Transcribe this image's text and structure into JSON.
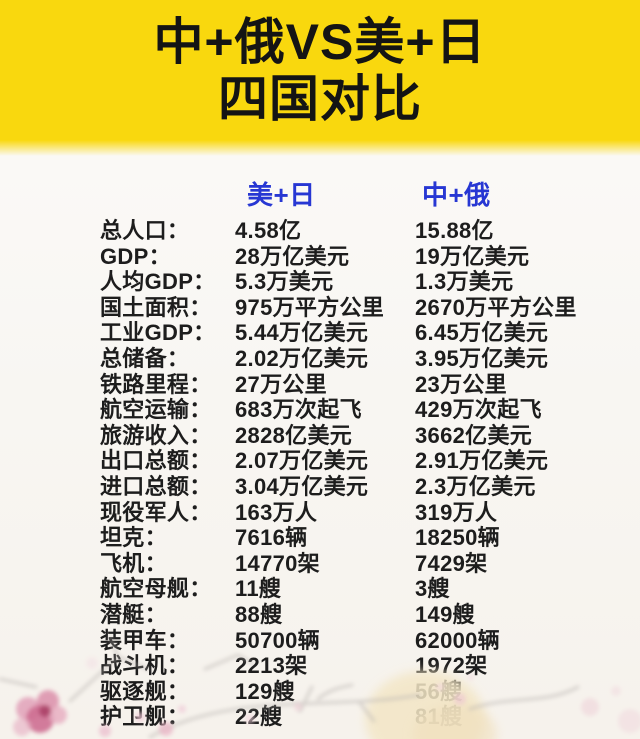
{
  "header": {
    "title_line1": "中+俄VS美+日",
    "title_line2": "四国对比",
    "bg_color": "#F9D80E",
    "text_color": "#141414"
  },
  "table": {
    "column_headers": {
      "us_jp": "美+日",
      "cn_ru": "中+俄",
      "color": "#2737D3"
    },
    "rows": [
      {
        "label": "总人口：",
        "us_jp": "4.58亿",
        "cn_ru": "15.88亿"
      },
      {
        "label": "GDP：",
        "us_jp": "28万亿美元",
        "cn_ru": "19万亿美元"
      },
      {
        "label": "人均GDP：",
        "us_jp": "5.3万美元",
        "cn_ru": "1.3万美元"
      },
      {
        "label": "国土面积：",
        "us_jp": "975万平方公里",
        "cn_ru": "2670万平方公里"
      },
      {
        "label": "工业GDP：",
        "us_jp": "5.44万亿美元",
        "cn_ru": "6.45万亿美元"
      },
      {
        "label": "总储备：",
        "us_jp": "2.02万亿美元",
        "cn_ru": "3.95万亿美元"
      },
      {
        "label": "铁路里程：",
        "us_jp": "27万公里",
        "cn_ru": "23万公里"
      },
      {
        "label": "航空运输：",
        "us_jp": "683万次起飞",
        "cn_ru": "429万次起飞"
      },
      {
        "label": "旅游收入：",
        "us_jp": "2828亿美元",
        "cn_ru": "3662亿美元"
      },
      {
        "label": "出口总额：",
        "us_jp": "2.07万亿美元",
        "cn_ru": "2.91万亿美元"
      },
      {
        "label": "进口总额：",
        "us_jp": "3.04万亿美元",
        "cn_ru": "2.3万亿美元"
      },
      {
        "label": "现役军人：",
        "us_jp": "163万人",
        "cn_ru": "319万人"
      },
      {
        "label": "坦克：",
        "us_jp": "7616辆",
        "cn_ru": "18250辆"
      },
      {
        "label": "飞机：",
        "us_jp": "14770架",
        "cn_ru": "7429架"
      },
      {
        "label": "航空母舰：",
        "us_jp": "11艘",
        "cn_ru": "3艘"
      },
      {
        "label": "潜艇：",
        "us_jp": "88艘",
        "cn_ru": "149艘"
      },
      {
        "label": "装甲车：",
        "us_jp": "50700辆",
        "cn_ru": "62000辆"
      },
      {
        "label": "战斗机：",
        "us_jp": "2213架",
        "cn_ru": "1972架"
      },
      {
        "label": "驱逐舰：",
        "us_jp": "129艘",
        "cn_ru": "56艘"
      },
      {
        "label": "护卫舰：",
        "us_jp": "22艘",
        "cn_ru": "81艘"
      }
    ]
  },
  "chart_data": {
    "type": "table",
    "title": "中+俄VS美+日 四国对比",
    "categories": [
      "总人口",
      "GDP",
      "人均GDP",
      "国土面积",
      "工业GDP",
      "总储备",
      "铁路里程",
      "航空运输",
      "旅游收入",
      "出口总额",
      "进口总额",
      "现役军人",
      "坦克",
      "飞机",
      "航空母舰",
      "潜艇",
      "装甲车",
      "战斗机",
      "驱逐舰",
      "护卫舰"
    ],
    "series": [
      {
        "name": "美+日",
        "values": [
          "4.58亿",
          "28万亿美元",
          "5.3万美元",
          "975万平方公里",
          "5.44万亿美元",
          "2.02万亿美元",
          "27万公里",
          "683万次起飞",
          "2828亿美元",
          "2.07万亿美元",
          "3.04万亿美元",
          "163万人",
          "7616辆",
          "14770架",
          "11艘",
          "88艘",
          "50700辆",
          "2213架",
          "129艘",
          "22艘"
        ]
      },
      {
        "name": "中+俄",
        "values": [
          "15.88亿",
          "19万亿美元",
          "1.3万美元",
          "2670万平方公里",
          "6.45万亿美元",
          "3.95万亿美元",
          "23万公里",
          "429万次起飞",
          "3662亿美元",
          "2.91万亿美元",
          "2.3万亿美元",
          "319万人",
          "18250辆",
          "7429架",
          "3艘",
          "149艘",
          "62000辆",
          "1972架",
          "56艘",
          "81艘"
        ]
      }
    ],
    "layout": {
      "header_text_color": "#2737D3",
      "banner_color": "#F9D80E",
      "legend_position": "top"
    }
  }
}
